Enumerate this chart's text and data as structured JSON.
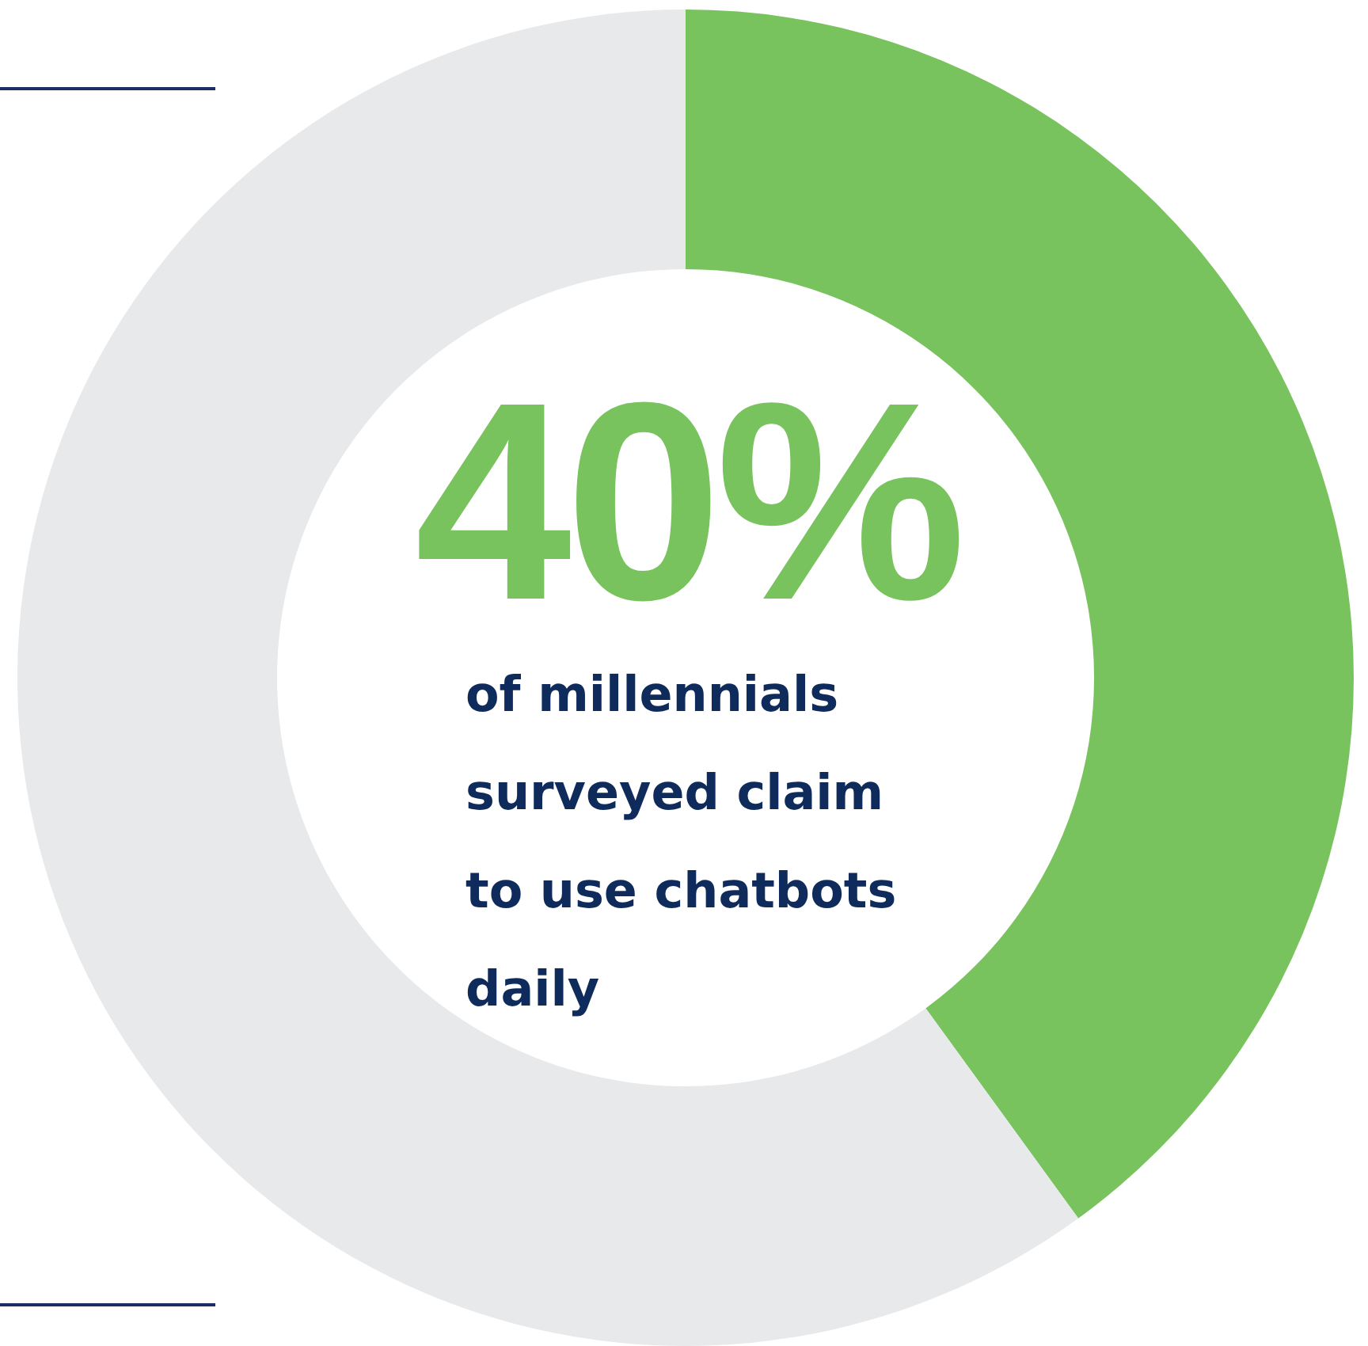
{
  "chart_data": {
    "type": "donut",
    "categories": [
      null,
      null
    ],
    "values": [
      40,
      60
    ],
    "colors": [
      "#79c35f",
      "#e8e9eb"
    ],
    "value_labels": [
      "40%",
      null
    ],
    "annotations": [
      "of millennials surveyed claim to use chatbots daily"
    ]
  }
}
